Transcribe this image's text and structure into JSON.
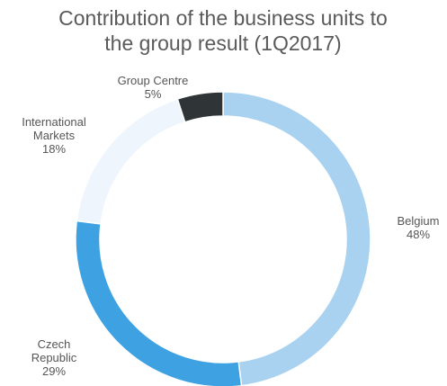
{
  "chart_data": {
    "type": "donut",
    "title": "Contribution of the business units to the group result (1Q2017)",
    "categories": [
      "Belgium",
      "Czech Republic",
      "International Markets",
      "Group Centre"
    ],
    "values": [
      48,
      29,
      18,
      5
    ],
    "value_labels": [
      "48%",
      "29%",
      "18%",
      "5%"
    ],
    "colors": [
      "#a9d1f0",
      "#3da1e2",
      "#eef5fc",
      "#2f3437"
    ]
  }
}
